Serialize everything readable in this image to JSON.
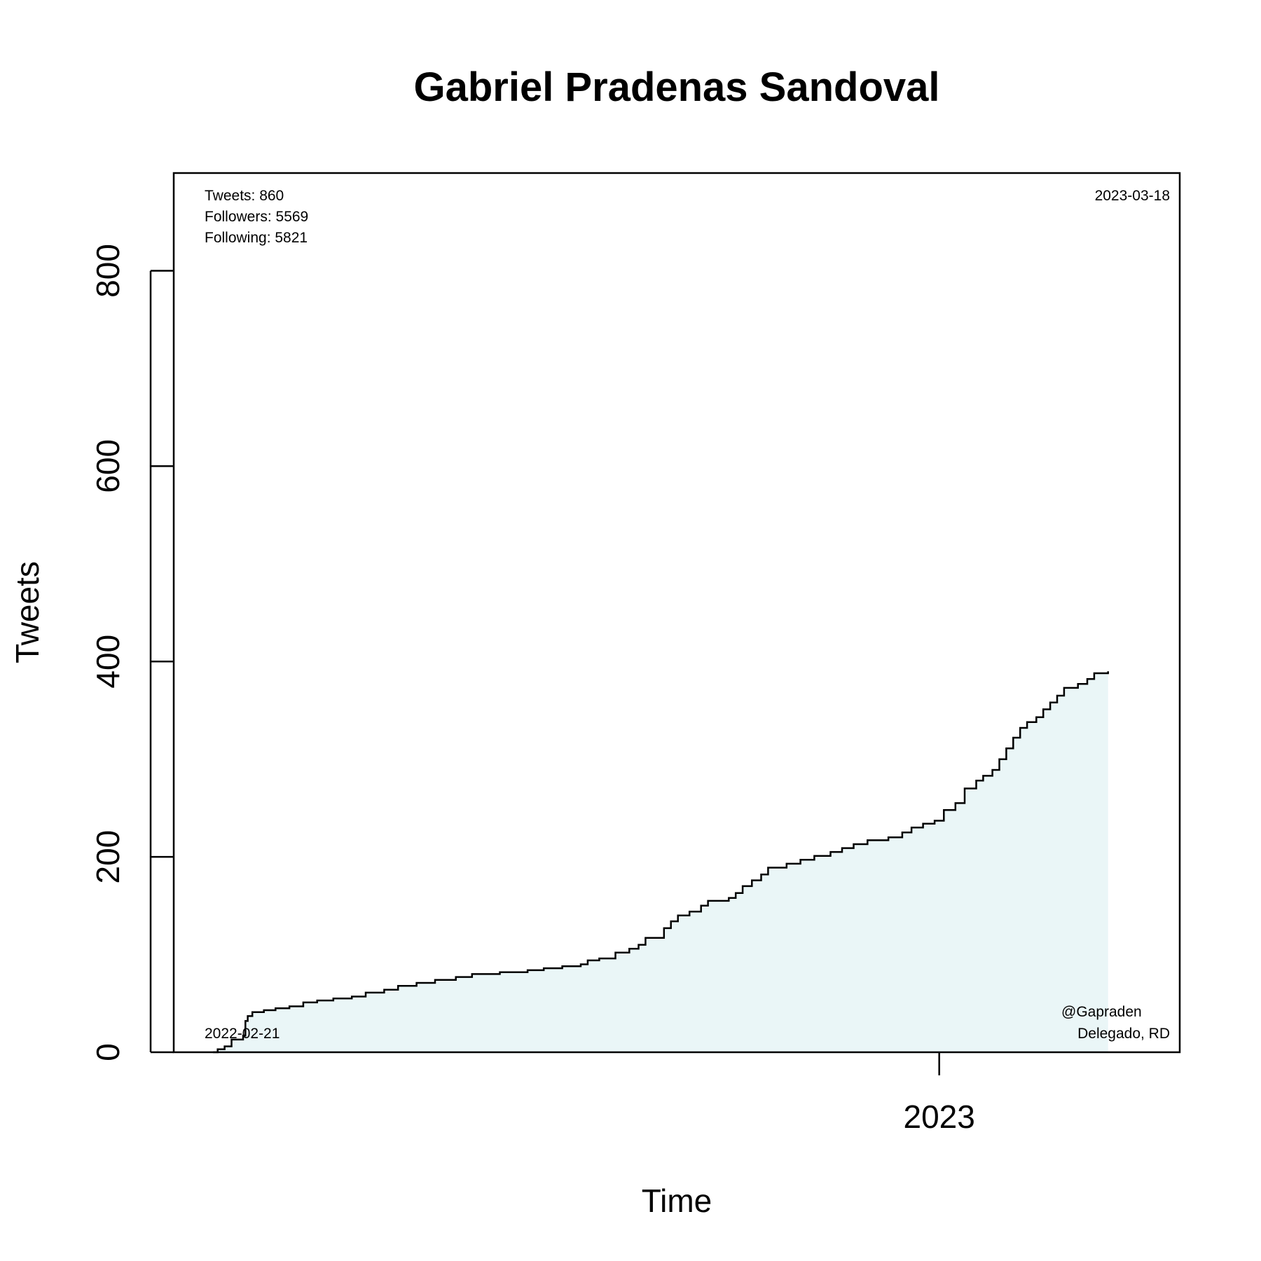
{
  "chart_data": {
    "type": "area",
    "title": "Gabriel Pradenas Sandoval",
    "xlabel": "Time",
    "ylabel": "Tweets",
    "ylim": [
      0,
      900
    ],
    "xlim": [
      "2022-02-04",
      "2023-04-15"
    ],
    "y_ticks": [
      0,
      200,
      400,
      600,
      800
    ],
    "x_ticks": [
      {
        "date": "2023-01-01",
        "label": "2023"
      }
    ],
    "grid": false,
    "annotations": {
      "tweets": "Tweets: 860",
      "followers": "Followers: 5569",
      "following": "Following: 5821",
      "start_date": "2022-02-21",
      "end_date": "2023-03-18",
      "handle": "@Gapraden",
      "role": "Delegado, RD"
    },
    "colors": {
      "line": "#000000",
      "fill": "#d8eef0"
    },
    "series": [
      {
        "points": [
          [
            "2022-02-21",
            0
          ],
          [
            "2022-02-23",
            3
          ],
          [
            "2022-02-26",
            6
          ],
          [
            "2022-03-01",
            13
          ],
          [
            "2022-03-06",
            17
          ],
          [
            "2022-03-07",
            32
          ],
          [
            "2022-03-08",
            37
          ],
          [
            "2022-03-10",
            41
          ],
          [
            "2022-03-15",
            43
          ],
          [
            "2022-03-20",
            45
          ],
          [
            "2022-03-26",
            47
          ],
          [
            "2022-04-01",
            51
          ],
          [
            "2022-04-07",
            53
          ],
          [
            "2022-04-14",
            55
          ],
          [
            "2022-04-22",
            57
          ],
          [
            "2022-04-28",
            61
          ],
          [
            "2022-05-06",
            64
          ],
          [
            "2022-05-12",
            68
          ],
          [
            "2022-05-20",
            71
          ],
          [
            "2022-05-28",
            74
          ],
          [
            "2022-06-06",
            77
          ],
          [
            "2022-06-13",
            80
          ],
          [
            "2022-06-25",
            82
          ],
          [
            "2022-07-07",
            84
          ],
          [
            "2022-07-14",
            86
          ],
          [
            "2022-07-22",
            88
          ],
          [
            "2022-07-30",
            90
          ],
          [
            "2022-08-02",
            94
          ],
          [
            "2022-08-07",
            96
          ],
          [
            "2022-08-14",
            102
          ],
          [
            "2022-08-20",
            106
          ],
          [
            "2022-08-24",
            110
          ],
          [
            "2022-08-27",
            117
          ],
          [
            "2022-09-04",
            127
          ],
          [
            "2022-09-07",
            134
          ],
          [
            "2022-09-10",
            140
          ],
          [
            "2022-09-15",
            144
          ],
          [
            "2022-09-20",
            150
          ],
          [
            "2022-09-23",
            155
          ],
          [
            "2022-10-02",
            158
          ],
          [
            "2022-10-05",
            163
          ],
          [
            "2022-10-08",
            170
          ],
          [
            "2022-10-12",
            176
          ],
          [
            "2022-10-16",
            182
          ],
          [
            "2022-10-19",
            189
          ],
          [
            "2022-10-27",
            193
          ],
          [
            "2022-11-02",
            197
          ],
          [
            "2022-11-08",
            201
          ],
          [
            "2022-11-15",
            205
          ],
          [
            "2022-11-20",
            209
          ],
          [
            "2022-11-25",
            213
          ],
          [
            "2022-12-01",
            217
          ],
          [
            "2022-12-10",
            220
          ],
          [
            "2022-12-16",
            225
          ],
          [
            "2022-12-20",
            230
          ],
          [
            "2022-12-25",
            234
          ],
          [
            "2022-12-30",
            237
          ],
          [
            "2023-01-03",
            248
          ],
          [
            "2023-01-08",
            255
          ],
          [
            "2023-01-12",
            270
          ],
          [
            "2023-01-17",
            278
          ],
          [
            "2023-01-20",
            283
          ],
          [
            "2023-01-24",
            289
          ],
          [
            "2023-01-27",
            300
          ],
          [
            "2023-01-30",
            311
          ],
          [
            "2023-02-02",
            322
          ],
          [
            "2023-02-05",
            332
          ],
          [
            "2023-02-08",
            338
          ],
          [
            "2023-02-12",
            343
          ],
          [
            "2023-02-15",
            351
          ],
          [
            "2023-02-18",
            358
          ],
          [
            "2023-02-21",
            365
          ],
          [
            "2023-02-24",
            373
          ],
          [
            "2023-03-02",
            377
          ],
          [
            "2023-03-06",
            382
          ],
          [
            "2023-03-09",
            388
          ],
          [
            "2023-03-15",
            390
          ]
        ]
      }
    ]
  }
}
